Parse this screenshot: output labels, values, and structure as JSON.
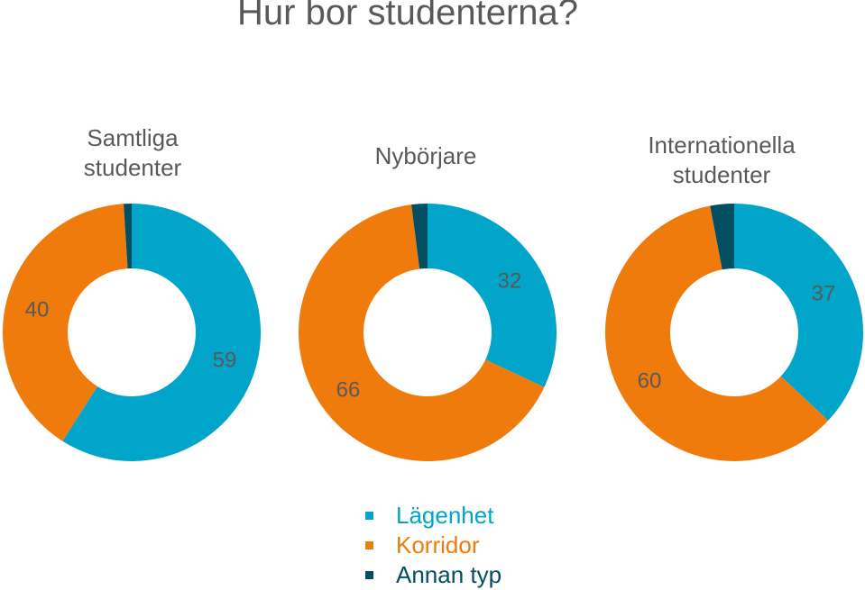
{
  "title": "Hur bor studenterna?",
  "colors": {
    "Lägenhet": "#00A5C9",
    "Korridor": "#EF7B0C",
    "Annan typ": "#034F61"
  },
  "legend": [
    {
      "label": "Lägenhet",
      "color": "#00A5C9"
    },
    {
      "label": "Korridor",
      "color": "#EF7B0C"
    },
    {
      "label": "Annan typ",
      "color": "#034F61"
    }
  ],
  "chart_data": [
    {
      "type": "pie",
      "title": "Samtliga\nstudenter",
      "categories": [
        "Lägenhet",
        "Korridor",
        "Annan typ"
      ],
      "values": [
        59,
        40,
        1
      ],
      "data_labels": [
        "59",
        "40",
        ""
      ]
    },
    {
      "type": "pie",
      "title": "Nybörjare",
      "categories": [
        "Lägenhet",
        "Korridor",
        "Annan typ"
      ],
      "values": [
        32,
        66,
        2
      ],
      "data_labels": [
        "32",
        "66",
        ""
      ]
    },
    {
      "type": "pie",
      "title": "Internationella\nstudenter",
      "categories": [
        "Lägenhet",
        "Korridor",
        "Annan typ"
      ],
      "values": [
        37,
        60,
        3
      ],
      "data_labels": [
        "37",
        "60",
        ""
      ]
    }
  ]
}
